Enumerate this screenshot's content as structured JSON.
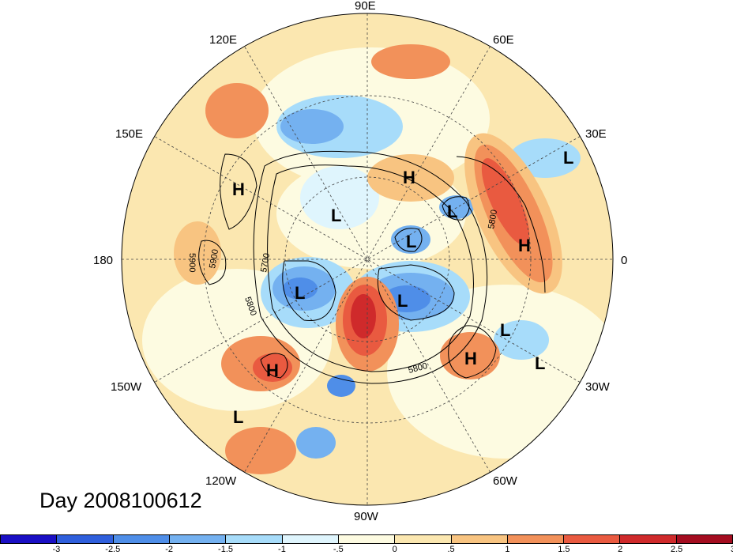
{
  "title": "Day 2008100612",
  "longitude_labels": [
    "90E",
    "60E",
    "30E",
    "0",
    "30W",
    "60W",
    "90W",
    "120W",
    "150W",
    "180",
    "150E",
    "120E"
  ],
  "pressure_systems": [
    "H",
    "H",
    "H",
    "H",
    "H",
    "L",
    "L",
    "L",
    "L",
    "L",
    "L",
    "L",
    "L",
    "L"
  ],
  "contour_labels": [
    "5900",
    "5900",
    "5700",
    "5800",
    "5800",
    "5800"
  ],
  "colorbar": {
    "tick_labels": [
      "-3",
      "-2.5",
      "-2",
      "-1.5",
      "-1",
      "-.5",
      "0",
      ".5",
      "1",
      "1.5",
      "2",
      "2.5",
      "3"
    ],
    "colors": [
      "#1a0fc4",
      "#2f5fdc",
      "#4f8ee8",
      "#74b1f0",
      "#a7dcfa",
      "#dff5fd",
      "#fdfbe1",
      "#fbe7b0",
      "#f8c481",
      "#f2915a",
      "#e95a40",
      "#cf2a2b",
      "#a40d20"
    ]
  }
}
